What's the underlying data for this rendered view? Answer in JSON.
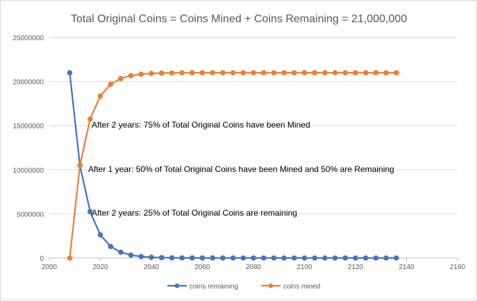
{
  "chart_data": {
    "type": "scatter",
    "title": "Total Original Coins = Coins Mined + Coins Remaining = 21,000,000",
    "xlabel": "",
    "ylabel": "",
    "xlim": [
      2000,
      2160
    ],
    "ylim": [
      0,
      25000000
    ],
    "x_ticks": [
      "2000",
      "2020",
      "2040",
      "2060",
      "2080",
      "2100",
      "2120",
      "2140",
      "2160"
    ],
    "y_ticks": [
      "0",
      "5000000",
      "10000000",
      "15000000",
      "20000000",
      "25000000"
    ],
    "grid": "horizontal",
    "legend_position": "bottom",
    "x": [
      2008,
      2012,
      2016,
      2020,
      2024,
      2028,
      2032,
      2036,
      2040,
      2044,
      2048,
      2052,
      2056,
      2060,
      2064,
      2068,
      2072,
      2076,
      2080,
      2084,
      2088,
      2092,
      2096,
      2100,
      2104,
      2108,
      2112,
      2116,
      2120,
      2124,
      2128,
      2132,
      2136
    ],
    "series": [
      {
        "name": "coins remaining",
        "color": "#4472c4",
        "values": [
          21000000,
          10500000,
          5250000,
          2625000,
          1312500,
          656250,
          328125,
          164063,
          82031,
          41016,
          20508,
          10254,
          5127,
          2563,
          1282,
          641,
          320,
          160,
          80,
          40,
          20,
          10,
          5,
          3,
          1,
          1,
          0,
          0,
          0,
          0,
          0,
          0,
          0
        ]
      },
      {
        "name": "coins mined",
        "color": "#ed7d31",
        "values": [
          0,
          10500000,
          15750000,
          18375000,
          19687500,
          20343750,
          20671875,
          20835938,
          20917969,
          20958984,
          20979492,
          20989746,
          20994873,
          20997437,
          20998718,
          20999359,
          20999680,
          20999840,
          20999920,
          20999960,
          20999980,
          20999990,
          20999995,
          20999997,
          20999999,
          20999999,
          21000000,
          21000000,
          21000000,
          21000000,
          21000000,
          21000000,
          21000000
        ]
      }
    ],
    "annotations": [
      "After 2 years: 75% of Total Original Coins have been  Mined",
      "After 1 year: 50% of Total Original Coins have been Mined and 50% are Remaining",
      "After 2 years: 25% of Total Original Coins are remaining"
    ]
  }
}
